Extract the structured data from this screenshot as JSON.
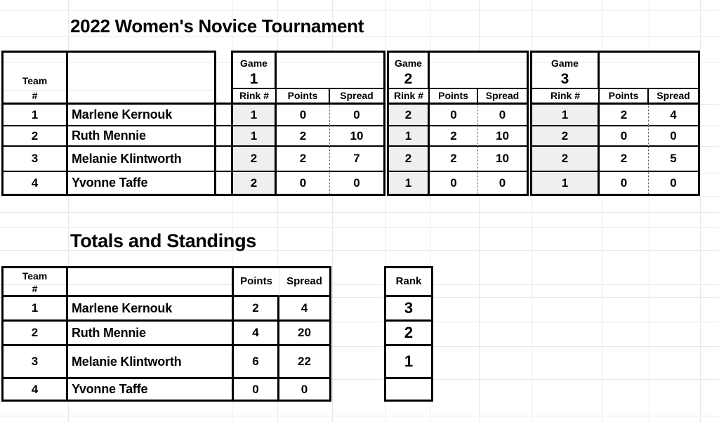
{
  "title": "2022 Women's Novice Tournament",
  "section2_title": "Totals and Standings",
  "games": {
    "team_header": {
      "line1": "Team",
      "line2": "#"
    },
    "game_groups": [
      {
        "label": "Game",
        "number": "1",
        "rink": "Rink #",
        "points": "Points",
        "spread": "Spread"
      },
      {
        "label": "Game",
        "number": "2",
        "rink": "Rink #",
        "points": "Points",
        "spread": "Spread"
      },
      {
        "label": "Game",
        "number": "3",
        "rink": "Rink #",
        "points": "Points",
        "spread": "Spread"
      }
    ],
    "rows": [
      {
        "team": "1",
        "name": "Marlene Kernouk",
        "g": [
          {
            "r": "1",
            "p": "0",
            "s": "0"
          },
          {
            "r": "2",
            "p": "0",
            "s": "0"
          },
          {
            "r": "1",
            "p": "2",
            "s": "4"
          }
        ]
      },
      {
        "team": "2",
        "name": "Ruth Mennie",
        "g": [
          {
            "r": "1",
            "p": "2",
            "s": "10"
          },
          {
            "r": "1",
            "p": "2",
            "s": "10"
          },
          {
            "r": "2",
            "p": "0",
            "s": "0"
          }
        ]
      },
      {
        "team": "3",
        "name": "Melanie Klintworth",
        "g": [
          {
            "r": "2",
            "p": "2",
            "s": "7"
          },
          {
            "r": "2",
            "p": "2",
            "s": "10"
          },
          {
            "r": "2",
            "p": "2",
            "s": "5"
          }
        ]
      },
      {
        "team": "4",
        "name": "Yvonne Taffe",
        "g": [
          {
            "r": "2",
            "p": "0",
            "s": "0"
          },
          {
            "r": "1",
            "p": "0",
            "s": "0"
          },
          {
            "r": "1",
            "p": "0",
            "s": "0"
          }
        ]
      }
    ]
  },
  "totals": {
    "team_header": {
      "line1": "Team",
      "line2": "#"
    },
    "points_header": "Points",
    "spread_header": "Spread",
    "rank_header": "Rank",
    "rows": [
      {
        "team": "1",
        "name": "Marlene Kernouk",
        "points": "2",
        "spread": "4",
        "rank": "3"
      },
      {
        "team": "2",
        "name": "Ruth Mennie",
        "points": "4",
        "spread": "20",
        "rank": "2"
      },
      {
        "team": "3",
        "name": "Melanie Klintworth",
        "points": "6",
        "spread": "22",
        "rank": "1"
      },
      {
        "team": "4",
        "name": "Yvonne Taffe",
        "points": "0",
        "spread": "0",
        "rank": ""
      }
    ]
  },
  "colors": {
    "rink_fill": "#efefef",
    "table_border": "#000000",
    "sheet_gridline": "#e8e8e8"
  }
}
